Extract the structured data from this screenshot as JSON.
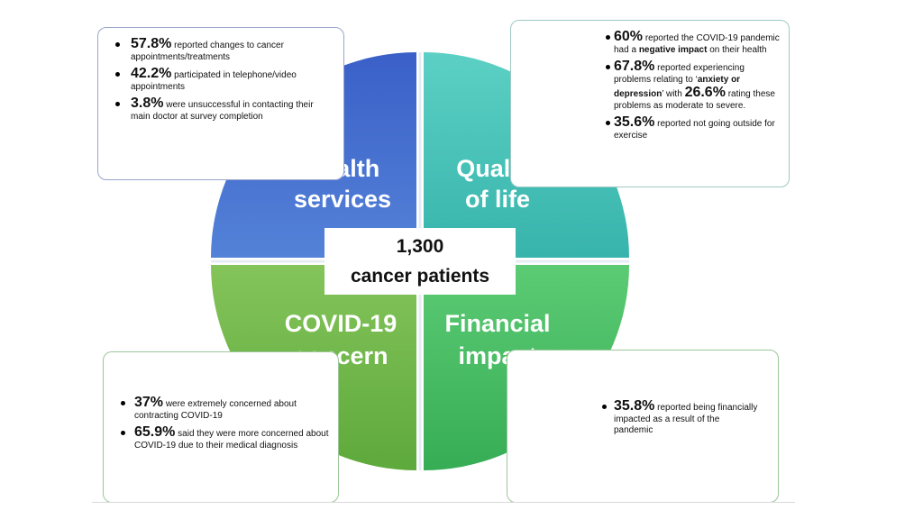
{
  "center": {
    "count": "1,300",
    "label": "cancer patients"
  },
  "quadrants": {
    "health": {
      "line1": "Health",
      "line2": "services",
      "color": "#4472c4"
    },
    "quality": {
      "line1": "Quality",
      "line2": "of life",
      "color": "#3fbfb5"
    },
    "covid": {
      "line1": "COVID-19",
      "line2": "concern",
      "color": "#6aac46"
    },
    "financial": {
      "line1": "Financial",
      "line2": "impact",
      "color": "#45b85f"
    }
  },
  "health_box": {
    "items": [
      {
        "stat": "57.8%",
        "text": "reported changes to cancer appointments/treatments"
      },
      {
        "stat": "42.2%",
        "text": "participated in telephone/video appointments"
      },
      {
        "stat": "3.8%",
        "text": "were unsuccessful in contacting their main doctor at survey completion"
      }
    ]
  },
  "quality_box": {
    "item1": {
      "stat": "60%",
      "text_a": "reported the COVID-19 pandemic had a",
      "bold": "negative impact",
      "text_b": "on their health"
    },
    "item2": {
      "stat": "67.8%",
      "text_a": "reported experiencing problems relating to ‘",
      "bold": "anxiety or depression",
      "text_b": "’ with",
      "stat2": "26.6%",
      "text_c": "rating these problems as moderate to severe."
    },
    "item3": {
      "stat": "35.6%",
      "text": "reported not going outside for exercise"
    }
  },
  "covid_box": {
    "items": [
      {
        "stat": "37%",
        "text": "were extremely concerned about contracting COVID-19"
      },
      {
        "stat": "65.9%",
        "text": "said they were more concerned about COVID-19 due to their medical diagnosis"
      }
    ]
  },
  "financial_box": {
    "items": [
      {
        "stat": "35.8%",
        "text": "reported being financially impacted as a result of the pandemic"
      }
    ]
  }
}
